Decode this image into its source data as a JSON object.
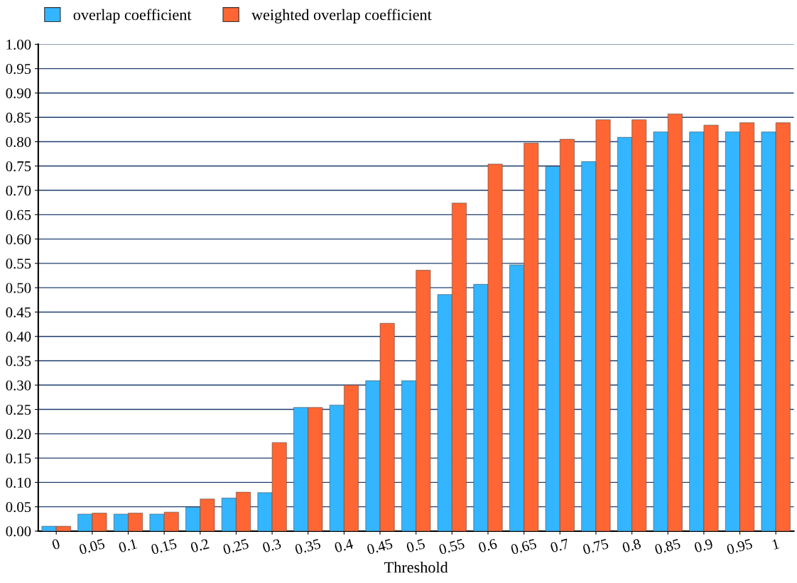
{
  "chart_data": {
    "type": "bar",
    "xlabel": "Threshold",
    "categories": [
      "0",
      "0.05",
      "0.1",
      "0.15",
      "0.2",
      "0.25",
      "0.3",
      "0.35",
      "0.4",
      "0.45",
      "0.5",
      "0.55",
      "0.6",
      "0.65",
      "0.7",
      "0.75",
      "0.8",
      "0.85",
      "0.9",
      "0.95",
      "1"
    ],
    "series": [
      {
        "name": "overlap coefficient",
        "color": "#33b5ff",
        "values": [
          0.01,
          0.035,
          0.035,
          0.035,
          0.049,
          0.068,
          0.079,
          0.254,
          0.259,
          0.309,
          0.309,
          0.486,
          0.507,
          0.547,
          0.749,
          0.759,
          0.809,
          0.82,
          0.82,
          0.82,
          0.82
        ]
      },
      {
        "name": "weighted overlap coefficient",
        "color": "#ff6633",
        "values": [
          0.01,
          0.037,
          0.037,
          0.039,
          0.066,
          0.08,
          0.182,
          0.254,
          0.3,
          0.427,
          0.536,
          0.674,
          0.754,
          0.797,
          0.805,
          0.845,
          0.845,
          0.857,
          0.834,
          0.839,
          0.839
        ]
      }
    ],
    "ylim": [
      0,
      1
    ],
    "yticks": [
      {
        "value": 0,
        "label": "0.00"
      },
      {
        "value": 0.05,
        "label": "0.05"
      },
      {
        "value": 0.1,
        "label": "0.10"
      },
      {
        "value": 0.15,
        "label": "0.15"
      },
      {
        "value": 0.2,
        "label": "0.20"
      },
      {
        "value": 0.25,
        "label": "0.25"
      },
      {
        "value": 0.3,
        "label": "0.30"
      },
      {
        "value": 0.35,
        "label": "0.35"
      },
      {
        "value": 0.4,
        "label": "0.40"
      },
      {
        "value": 0.45,
        "label": "0.45"
      },
      {
        "value": 0.5,
        "label": "0.50"
      },
      {
        "value": 0.55,
        "label": "0.55"
      },
      {
        "value": 0.6,
        "label": "0.60"
      },
      {
        "value": 0.65,
        "label": "0.65"
      },
      {
        "value": 0.7,
        "label": "0.70"
      },
      {
        "value": 0.75,
        "label": "0.75"
      },
      {
        "value": 0.8,
        "label": "0.80"
      },
      {
        "value": 0.85,
        "label": "0.85"
      },
      {
        "value": 0.9,
        "label": "0.90"
      },
      {
        "value": 0.95,
        "label": "0.95"
      },
      {
        "value": 1,
        "label": "1.00"
      }
    ],
    "grid": "y",
    "legend": "top left"
  }
}
